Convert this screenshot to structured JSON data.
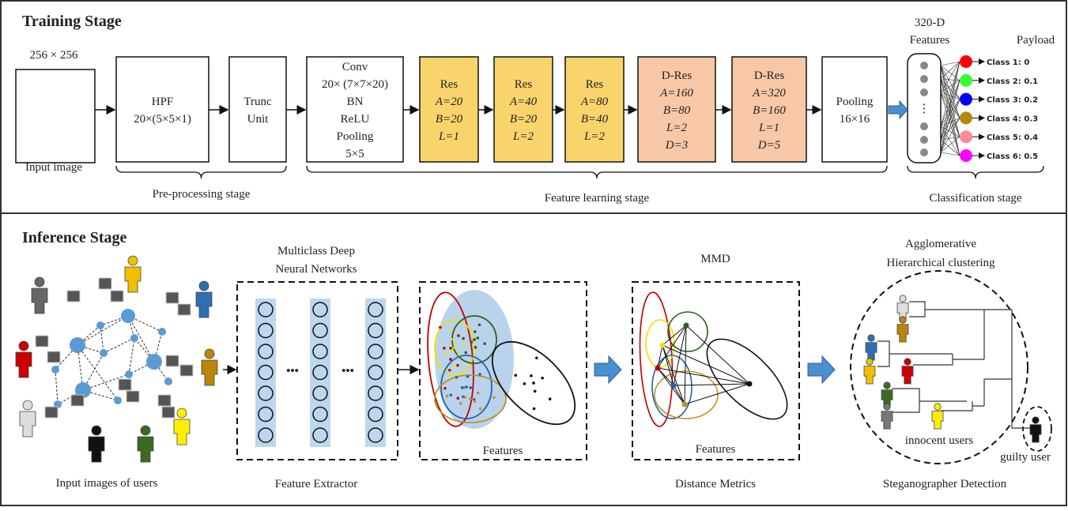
{
  "training": {
    "title": "Training Stage",
    "input_size": "256 × 256",
    "input_label": "Input image",
    "blocks": [
      {
        "lines": [
          "HPF",
          "20×(5×5×1)"
        ]
      },
      {
        "lines": [
          "Trunc",
          "Unit"
        ]
      },
      {
        "lines": [
          "Conv",
          "20× (7×7×20)",
          "BN",
          "ReLU",
          "Pooling",
          "5×5"
        ]
      },
      {
        "lines": [
          "Res",
          "A=20",
          "B=20",
          "L=1"
        ]
      },
      {
        "lines": [
          "Res",
          "A=40",
          "B=20",
          "L=2"
        ]
      },
      {
        "lines": [
          "Res",
          "A=80",
          "B=40",
          "L=2"
        ]
      },
      {
        "lines": [
          "D-Res",
          "A=160",
          "B=80",
          "L=2",
          "D=3"
        ]
      },
      {
        "lines": [
          "D-Res",
          "A=320",
          "B=160",
          "L=1",
          "D=5"
        ]
      },
      {
        "lines": [
          "Pooling",
          "16×16"
        ]
      }
    ],
    "features": [
      "320-D",
      "Features"
    ],
    "payload": "Payload",
    "classes": [
      "Class 1: 0",
      "Class 2: 0.1",
      "Class 3: 0.2",
      "Class 4: 0.3",
      "Class 5: 0.4",
      "Class 6: 0.5"
    ],
    "stages": [
      "Pre-processing stage",
      "Feature learning stage",
      "Classification stage"
    ]
  },
  "inference": {
    "title": "Inference Stage",
    "users_label": "Input images of users",
    "network_title": [
      "Multiclass Deep",
      "Neural Networks"
    ],
    "extractor_label": "Feature Extractor",
    "features_label": "Features",
    "mmd_title": "MMD",
    "mmd_features": "Features",
    "mmd_label": "Distance Metrics",
    "clustering_title": [
      "Agglomerative",
      "Hierarchical clustering"
    ],
    "innocent": "innocent users",
    "guilty": "guilty user",
    "detection_label": "Steganographer Detection"
  }
}
